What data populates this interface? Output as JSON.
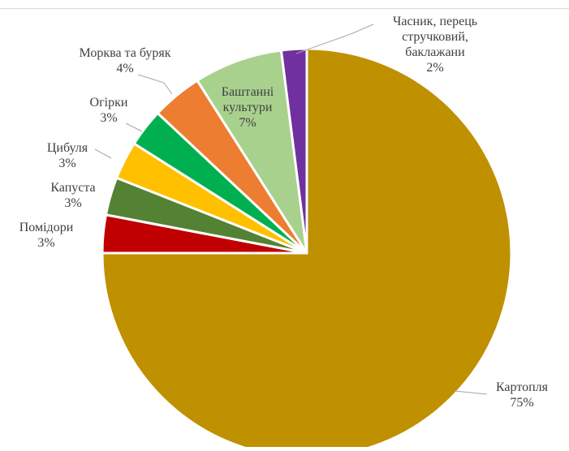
{
  "chart_data": {
    "type": "pie",
    "title": "",
    "legend": "none",
    "slices": [
      {
        "label": [
          "Картопля",
          "75%"
        ],
        "value": 75,
        "color": "#BF9000"
      },
      {
        "label": [
          "Помідори",
          "3%"
        ],
        "value": 3,
        "color": "#C00000"
      },
      {
        "label": [
          "Капуста",
          "3%"
        ],
        "value": 3,
        "color": "#548235"
      },
      {
        "label": [
          "Цибуля",
          "3%"
        ],
        "value": 3,
        "color": "#FFC000"
      },
      {
        "label": [
          "Огірки",
          "3%"
        ],
        "value": 3,
        "color": "#00B050"
      },
      {
        "label": [
          "Морква та буряк",
          "4%"
        ],
        "value": 4,
        "color": "#ED7D31"
      },
      {
        "label": [
          "Баштанні",
          "культури",
          "7%"
        ],
        "value": 7,
        "color": "#A9D18E"
      },
      {
        "label": [
          "Часник, перець",
          "стручковий,",
          "баклажани",
          "2%"
        ],
        "value": 2,
        "color": "#7030A0"
      }
    ]
  }
}
